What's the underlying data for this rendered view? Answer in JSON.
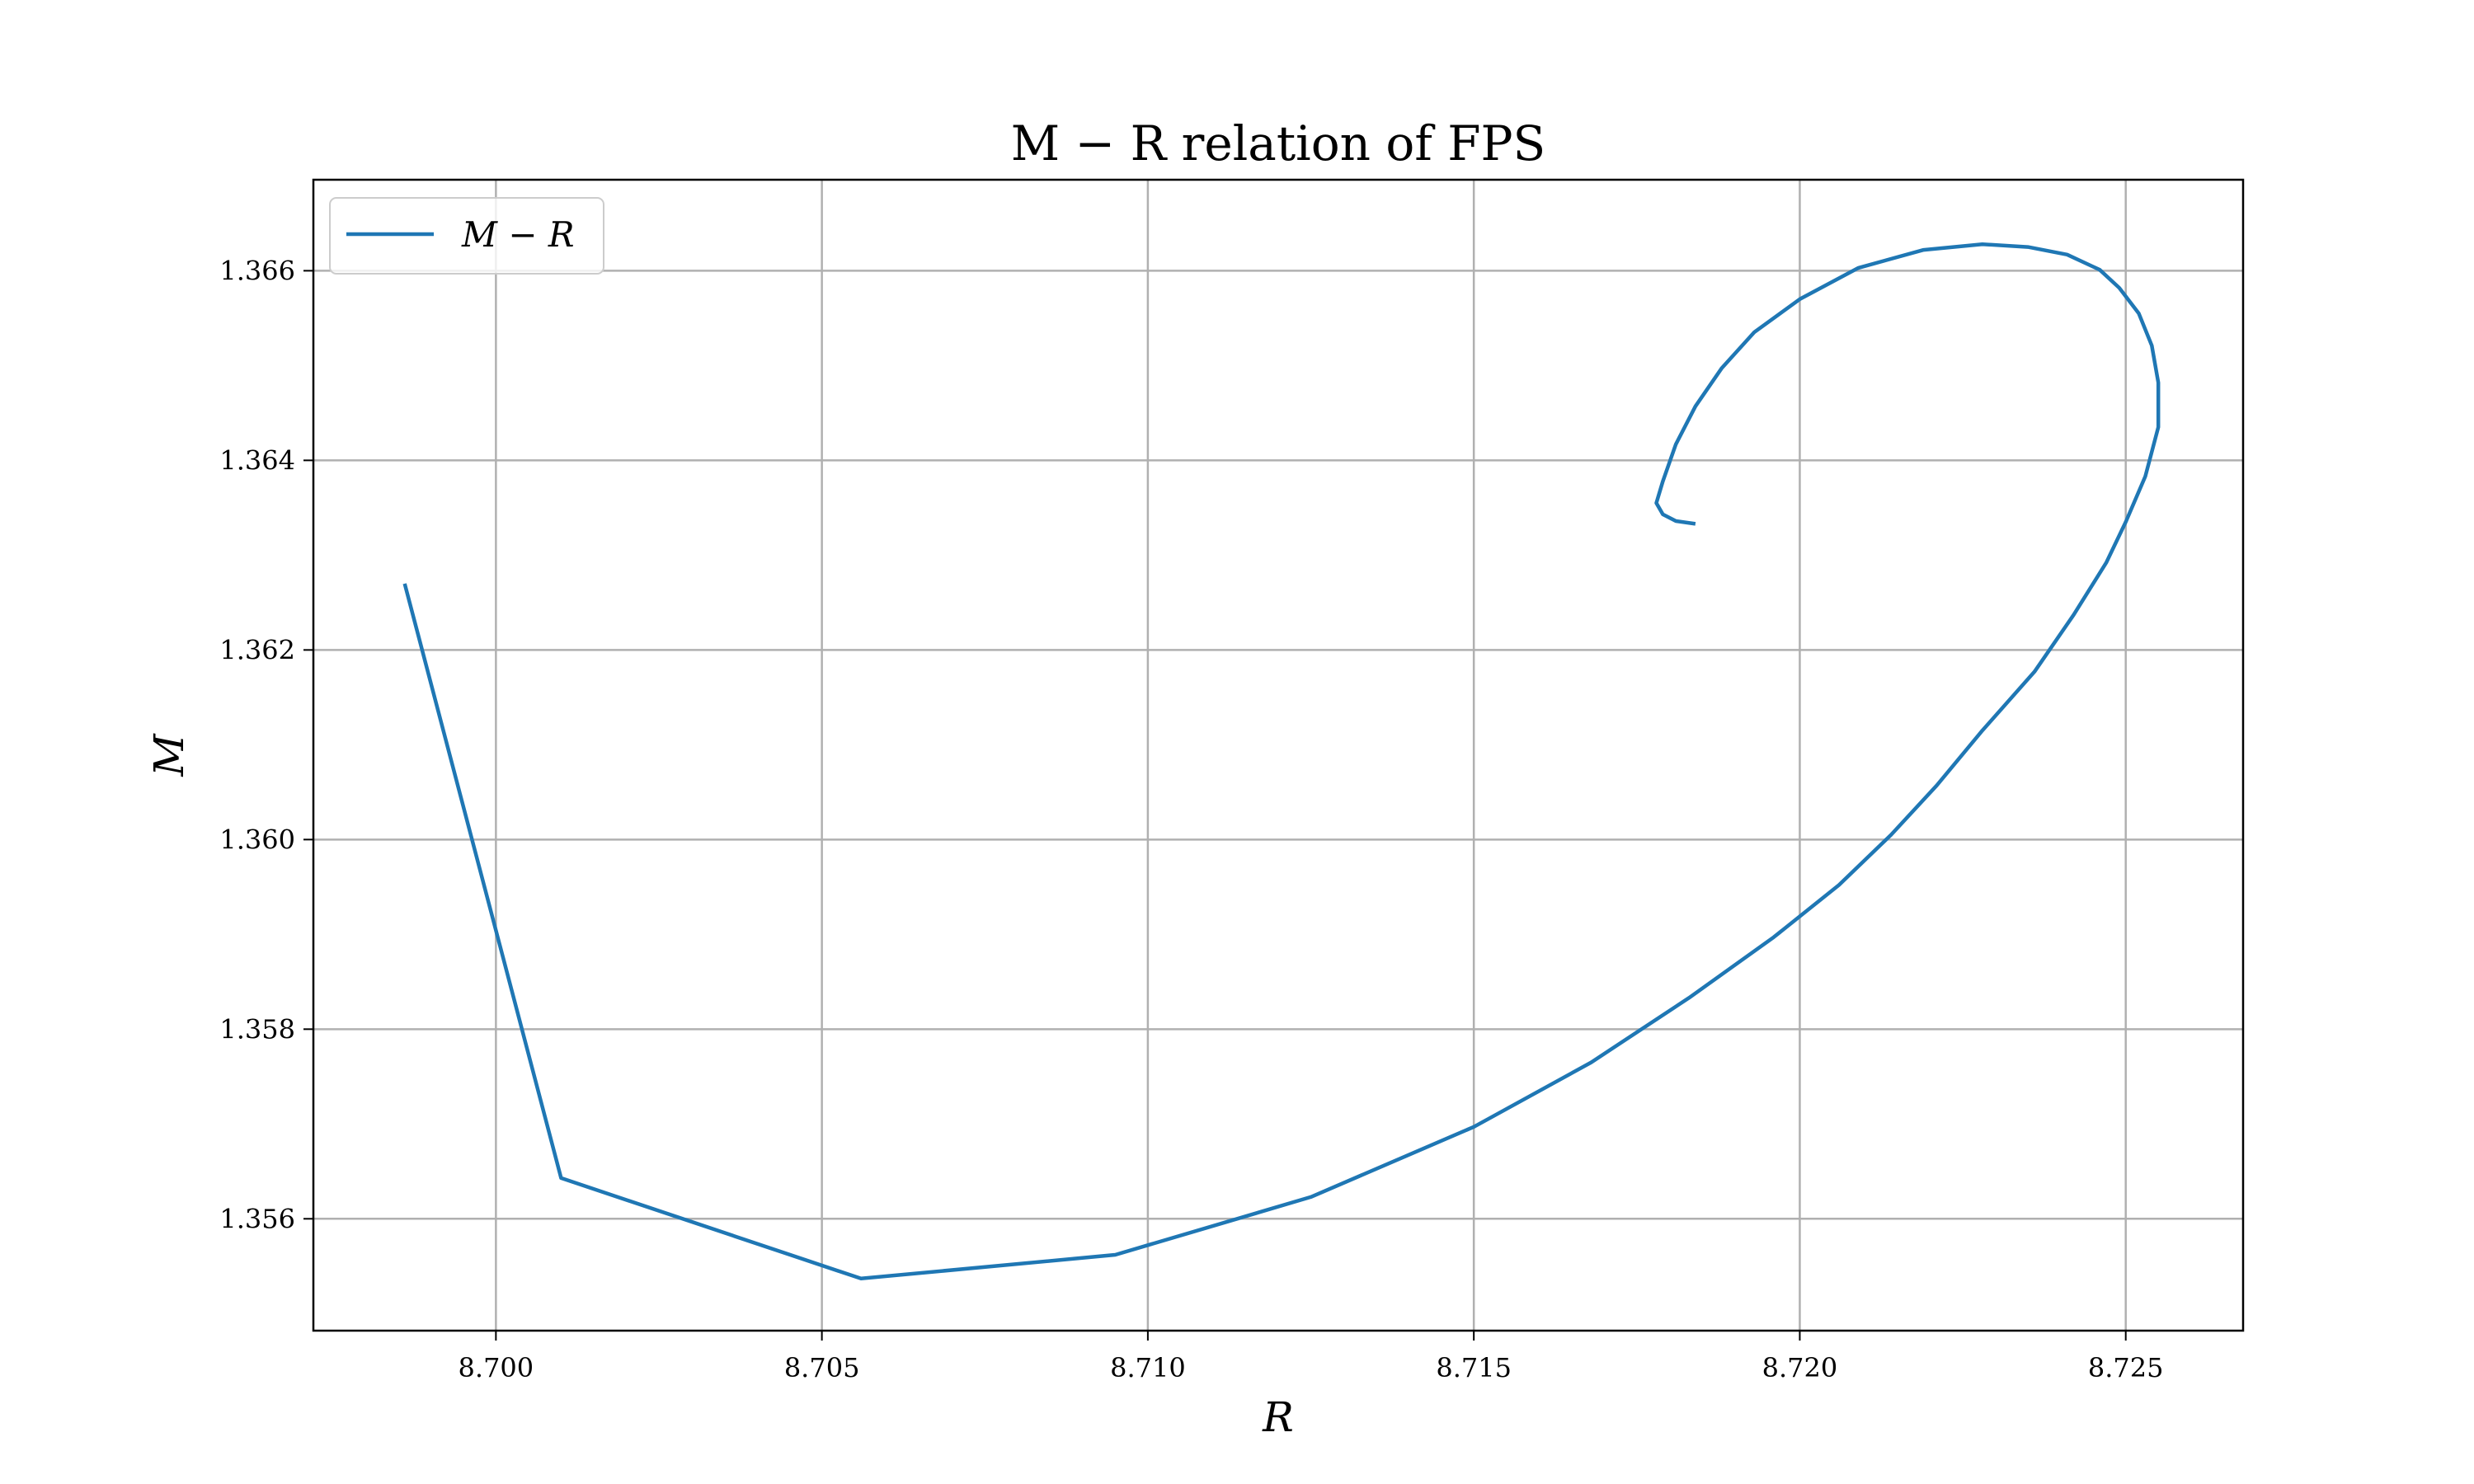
{
  "chart_data": {
    "type": "line",
    "title": "M − R relation of FPS",
    "xlabel": "R",
    "ylabel": "M",
    "xlim": [
      8.6972,
      8.7268
    ],
    "ylim": [
      1.35482,
      1.36696
    ],
    "xticks": [
      8.7,
      8.705,
      8.71,
      8.715,
      8.72,
      8.725
    ],
    "xtick_labels": [
      "8.700",
      "8.705",
      "8.710",
      "8.715",
      "8.720",
      "8.725"
    ],
    "yticks": [
      1.356,
      1.358,
      1.36,
      1.362,
      1.364,
      1.366
    ],
    "ytick_labels": [
      "1.356",
      "1.358",
      "1.360",
      "1.362",
      "1.364",
      "1.366"
    ],
    "grid": true,
    "legend_position": "top-left",
    "series": [
      {
        "name": "M − R",
        "color": "#1f77b4",
        "x": [
          8.6986,
          8.701,
          8.7056,
          8.7095,
          8.7125,
          8.715,
          8.7168,
          8.7183,
          8.7196,
          8.7206,
          8.7214,
          8.7221,
          8.7228,
          8.7236,
          8.7242,
          8.7247,
          8.725,
          8.7253,
          8.7255,
          8.7255,
          8.7254,
          8.7252,
          8.7249,
          8.7246,
          8.7241,
          8.7235,
          8.7228,
          8.7219,
          8.7209,
          8.72,
          8.7193,
          8.7188,
          8.7184,
          8.7181,
          8.7179,
          8.7178,
          8.7179,
          8.7181,
          8.7184
        ],
        "y": [
          1.3627,
          1.35643,
          1.35537,
          1.35562,
          1.35623,
          1.35697,
          1.35765,
          1.35833,
          1.35897,
          1.35952,
          1.36005,
          1.36057,
          1.36115,
          1.36177,
          1.36237,
          1.36292,
          1.36335,
          1.36383,
          1.36435,
          1.36482,
          1.36521,
          1.36555,
          1.36582,
          1.36601,
          1.36617,
          1.36625,
          1.36628,
          1.36622,
          1.36603,
          1.3657,
          1.36535,
          1.36497,
          1.36457,
          1.36417,
          1.36378,
          1.36355,
          1.36343,
          1.36336,
          1.36333
        ]
      }
    ]
  }
}
